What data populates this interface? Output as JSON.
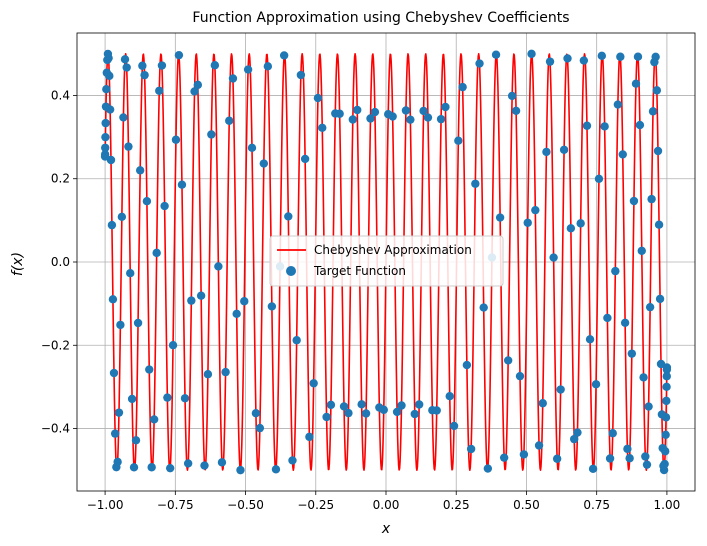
{
  "chart_data": {
    "type": "line",
    "title": "Function Approximation using Chebyshev Coefficients",
    "xlabel": "x",
    "ylabel": "f(x)",
    "xlim": [
      -1.1,
      1.1
    ],
    "ylim": [
      -0.55,
      0.55
    ],
    "grid": true,
    "legend_position": "center",
    "xticks": [
      {
        "value": -1.0,
        "label": "−1.00"
      },
      {
        "value": -0.75,
        "label": "−0.75"
      },
      {
        "value": -0.5,
        "label": "−0.50"
      },
      {
        "value": -0.25,
        "label": "−0.25"
      },
      {
        "value": 0.0,
        "label": "0.00"
      },
      {
        "value": 0.25,
        "label": "0.25"
      },
      {
        "value": 0.5,
        "label": "0.50"
      },
      {
        "value": 0.75,
        "label": "0.75"
      },
      {
        "value": 1.0,
        "label": "1.00"
      }
    ],
    "yticks": [
      {
        "value": -0.4,
        "label": "−0.4"
      },
      {
        "value": -0.2,
        "label": "−0.2"
      },
      {
        "value": 0.0,
        "label": "0.0"
      },
      {
        "value": 0.2,
        "label": "0.2"
      },
      {
        "value": 0.4,
        "label": "0.4"
      }
    ],
    "series": [
      {
        "name": "Chebyshev Approximation",
        "kind": "line",
        "color": "#ff0000",
        "function": "0.5*sin(100*x)",
        "x_range": [
          -1,
          1
        ],
        "samples": 1200
      },
      {
        "name": "Target Function",
        "kind": "scatter",
        "color": "#1f77b4",
        "function": "0.5*sin(100*x)",
        "x_rule": "cos(pi*k/199)",
        "count": 200
      }
    ]
  }
}
